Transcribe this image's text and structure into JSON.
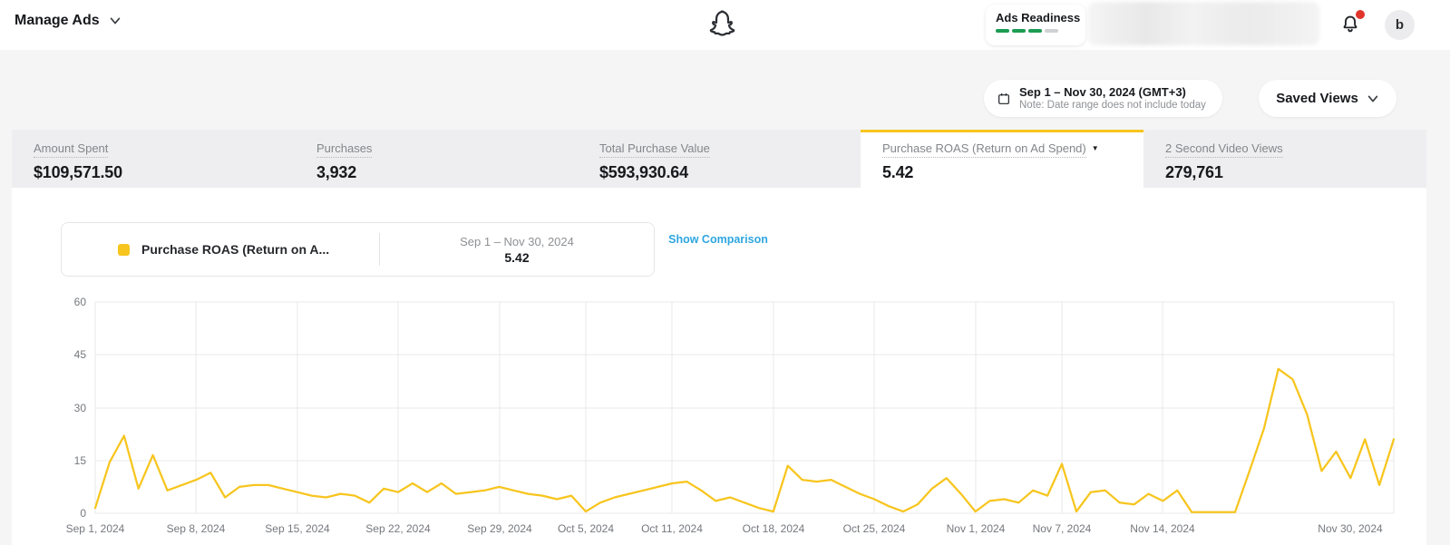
{
  "theme": {
    "accent": "#F7C51E",
    "link_blue": "#2EA7E0",
    "progress_green": "#1B9C52",
    "alert_red": "#E0352C",
    "grid": "#E9E9EB"
  },
  "topbar": {
    "manage_ads": "Manage Ads",
    "ads_readiness": {
      "label": "Ads Readiness",
      "segments_total": 4,
      "segments_filled": 3
    },
    "avatar_initial": "b"
  },
  "filters": {
    "date_range": "Sep 1 – Nov 30, 2024 (GMT+3)",
    "date_note": "Note: Date range does not include today",
    "saved_views": "Saved Views"
  },
  "metrics": [
    {
      "label": "Amount Spent",
      "value": "$109,571.50",
      "selected": false,
      "has_dropdown": false
    },
    {
      "label": "Purchases",
      "value": "3,932",
      "selected": false,
      "has_dropdown": false
    },
    {
      "label": "Total Purchase Value",
      "value": "$593,930.64",
      "selected": false,
      "has_dropdown": false
    },
    {
      "label": "Purchase ROAS (Return on Ad Spend)",
      "value": "5.42",
      "selected": true,
      "has_dropdown": true
    },
    {
      "label": "2 Second Video Views",
      "value": "279,761",
      "selected": false,
      "has_dropdown": false
    }
  ],
  "legend": {
    "series_label": "Purchase ROAS (Return on A...",
    "date_range": "Sep 1 – Nov 30, 2024",
    "value": "5.42",
    "show_comparison": "Show Comparison"
  },
  "chart_data": {
    "type": "line",
    "title": "Purchase ROAS (Return on Ad Spend) by day",
    "series_name": "Purchase ROAS (Return on Ad Spend)",
    "line_color": "#F7C51E",
    "grid": true,
    "legend_position": "top-left",
    "ylim": [
      0,
      60
    ],
    "y_ticks": [
      0,
      15,
      30,
      45,
      60
    ],
    "x_ticks": [
      {
        "day": 0,
        "label": "Sep 1, 2024"
      },
      {
        "day": 7,
        "label": "Sep 8, 2024"
      },
      {
        "day": 14,
        "label": "Sep 15, 2024"
      },
      {
        "day": 21,
        "label": "Sep 22, 2024"
      },
      {
        "day": 28,
        "label": "Sep 29, 2024"
      },
      {
        "day": 34,
        "label": "Oct 5, 2024"
      },
      {
        "day": 40,
        "label": "Oct 11, 2024"
      },
      {
        "day": 47,
        "label": "Oct 18, 2024"
      },
      {
        "day": 54,
        "label": "Oct 25, 2024"
      },
      {
        "day": 61,
        "label": "Nov 1, 2024"
      },
      {
        "day": 67,
        "label": "Nov 7, 2024"
      },
      {
        "day": 74,
        "label": "Nov 14, 2024"
      },
      {
        "day": 87,
        "label": "Nov 30, 2024",
        "gridline": false
      }
    ],
    "x": [
      "Sep 1",
      "Sep 2",
      "Sep 3",
      "Sep 4",
      "Sep 5",
      "Sep 6",
      "Sep 7",
      "Sep 8",
      "Sep 9",
      "Sep 10",
      "Sep 11",
      "Sep 12",
      "Sep 13",
      "Sep 14",
      "Sep 15",
      "Sep 16",
      "Sep 17",
      "Sep 18",
      "Sep 19",
      "Sep 20",
      "Sep 21",
      "Sep 22",
      "Sep 23",
      "Sep 24",
      "Sep 25",
      "Sep 26",
      "Sep 27",
      "Sep 28",
      "Sep 29",
      "Sep 30",
      "Oct 1",
      "Oct 2",
      "Oct 3",
      "Oct 4",
      "Oct 5",
      "Oct 6",
      "Oct 7",
      "Oct 8",
      "Oct 9",
      "Oct 10",
      "Oct 11",
      "Oct 12",
      "Oct 13",
      "Oct 14",
      "Oct 15",
      "Oct 16",
      "Oct 17",
      "Oct 18",
      "Oct 19",
      "Oct 20",
      "Oct 21",
      "Oct 22",
      "Oct 23",
      "Oct 24",
      "Oct 25",
      "Oct 26",
      "Oct 27",
      "Oct 28",
      "Oct 29",
      "Oct 30",
      "Oct 31",
      "Nov 1",
      "Nov 2",
      "Nov 3",
      "Nov 4",
      "Nov 5",
      "Nov 6",
      "Nov 7",
      "Nov 8",
      "Nov 9",
      "Nov 10",
      "Nov 11",
      "Nov 12",
      "Nov 13",
      "Nov 14",
      "Nov 15",
      "Nov 16",
      "Nov 17",
      "Nov 18",
      "Nov 19",
      "Nov 20",
      "Nov 21",
      "Nov 22",
      "Nov 23",
      "Nov 24",
      "Nov 25",
      "Nov 26",
      "Nov 27",
      "Nov 28",
      "Nov 29",
      "Nov 30"
    ],
    "values": [
      1.5,
      14.5,
      22,
      7,
      16.5,
      6.5,
      8,
      9.5,
      11.5,
      4.5,
      7.5,
      8,
      8,
      7,
      6,
      5,
      4.5,
      5.5,
      5,
      3,
      7,
      6,
      8.5,
      6,
      8.5,
      5.5,
      6,
      6.5,
      7.5,
      6.5,
      5.5,
      5,
      4,
      5,
      0.5,
      3,
      4.5,
      5.5,
      6.5,
      7.5,
      8.5,
      9,
      6.5,
      3.5,
      4.5,
      3,
      1.5,
      0.5,
      13.5,
      9.5,
      9,
      9.5,
      7.5,
      5.5,
      4,
      2,
      0.5,
      2.5,
      7,
      10,
      5.5,
      0.5,
      3.5,
      4,
      3,
      6.5,
      5,
      14,
      0.5,
      6,
      6.5,
      3,
      2.5,
      5.5,
      3.5,
      6.5,
      0.3,
      0.3,
      0.3,
      0.3,
      12,
      24,
      41,
      38,
      28,
      12,
      17.5,
      10,
      21,
      8,
      21
    ]
  }
}
